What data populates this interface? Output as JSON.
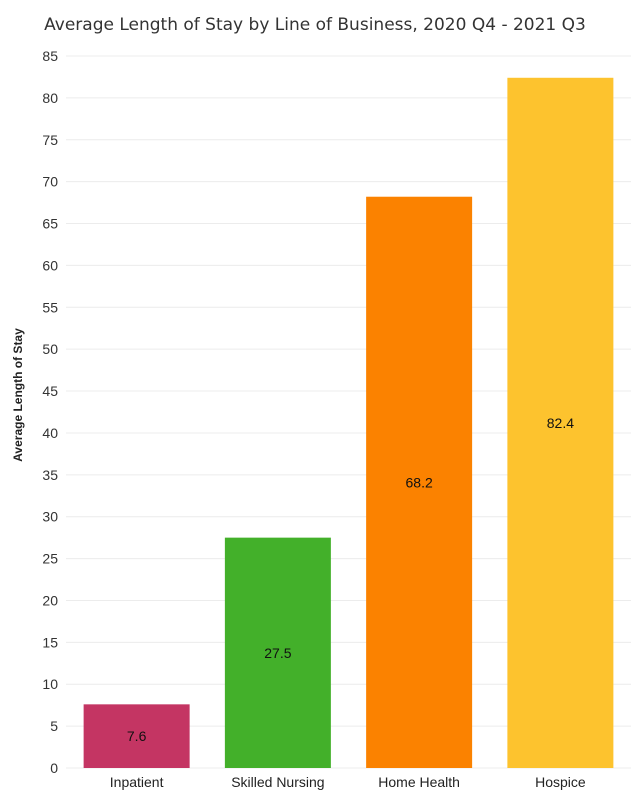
{
  "chart_data": {
    "type": "bar",
    "title": "Average Length of Stay by Line of Business, 2020 Q4 - 2021 Q3",
    "xlabel": "",
    "ylabel": "Average Length of Stay",
    "categories": [
      "Inpatient",
      "Skilled Nursing",
      "Home Health",
      "Hospice"
    ],
    "values": [
      7.6,
      27.5,
      68.2,
      82.4
    ],
    "data_labels": [
      "7.6",
      "27.5",
      "68.2",
      "82.4"
    ],
    "colors": [
      "#c43563",
      "#43b02a",
      "#fb8200",
      "#fdc32e"
    ],
    "ylim": [
      0,
      85
    ],
    "yticks": [
      0,
      5,
      10,
      15,
      20,
      25,
      30,
      35,
      40,
      45,
      50,
      55,
      60,
      65,
      70,
      75,
      80,
      85
    ],
    "grid": true,
    "legend": "none"
  }
}
